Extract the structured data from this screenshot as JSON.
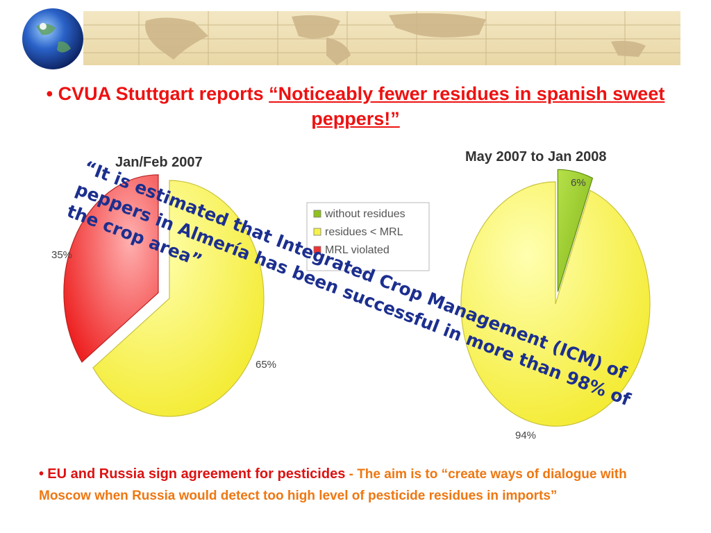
{
  "headline": {
    "bullet": "•",
    "prefix": "CVUA Stuttgart reports ",
    "quote": "“Noticeably fewer residues in spanish sweet peppers!”"
  },
  "overlay_quote": "“It is estimated that Integrated Crop Management (ICM) of peppers in Almería has been successful in more than 98% of the crop area”",
  "bottom": {
    "bullet": "•",
    "lead": "EU and Russia sign agreement for pesticides",
    "separator": " - ",
    "rest": "The aim is to “create ways of dialogue with Moscow when Russia would detect too high level of pesticide residues in imports”"
  },
  "colors": {
    "headline": "#ee1111",
    "overlay": "#1c2f8f",
    "bottom_lead": "#dd1111",
    "bottom_rest": "#ee7711",
    "green": "#8fc21b",
    "yellow": "#f7f24a",
    "red": "#ee3333"
  },
  "chart_data": [
    {
      "type": "pie",
      "title": "Jan/Feb 2007",
      "legend": [
        "without residues",
        "residues < MRL",
        "MRL violated"
      ],
      "slices": [
        {
          "label": "residues < MRL",
          "value": 65,
          "text": "65%",
          "color": "#f7f24a",
          "exploded": false
        },
        {
          "label": "MRL violated",
          "value": 35,
          "text": "35%",
          "color": "#ee3333",
          "exploded": true
        }
      ]
    },
    {
      "type": "pie",
      "title": "May 2007 to Jan 2008",
      "slices": [
        {
          "label": "without residues",
          "value": 6,
          "text": "6%",
          "color": "#8fc21b",
          "exploded": true
        },
        {
          "label": "residues < MRL",
          "value": 94,
          "text": "94%",
          "color": "#f7f24a",
          "exploded": false
        }
      ]
    }
  ]
}
